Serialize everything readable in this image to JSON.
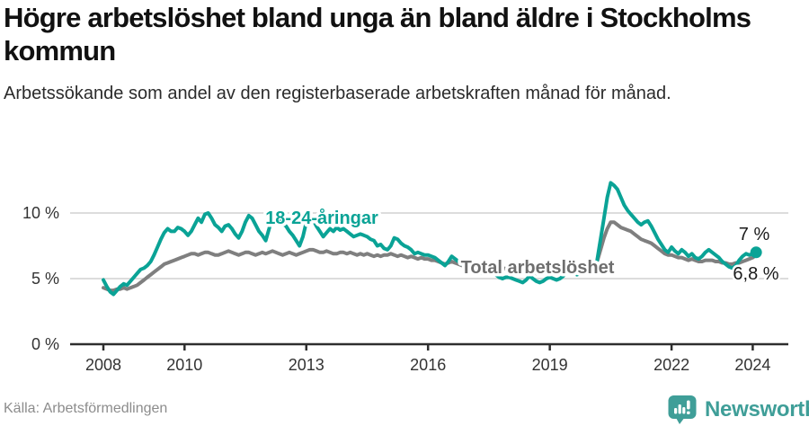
{
  "header": {
    "title": "Högre arbetslöshet bland unga än bland äldre i Stockholms kommun",
    "subtitle": "Arbetssökande som andel av den registerbaserade arbetskraften månad för månad."
  },
  "footer": {
    "source": "Källa: Arbetsförmedlingen",
    "brand": "Newsworthy"
  },
  "colors": {
    "young": "#0aa396",
    "total": "#7f7f7f",
    "total_label": "#6e6e6e",
    "grid": "#dcdcdc",
    "axis": "#2e2e2e",
    "tick_text": "#333333",
    "end_label_text": "#1a1a1a",
    "brand": "#3f9e98"
  },
  "chart_data": {
    "type": "line",
    "title": "Högre arbetslöshet bland unga än bland äldre i Stockholms kommun",
    "subtitle": "Arbetssökande som andel av den registerbaserade arbetskraften månad för månad.",
    "unit": "%",
    "x_start_year": 2008,
    "x_step_months": 1,
    "x_end": "2024-02",
    "xlim": [
      2008,
      2024.25
    ],
    "ylim": [
      0,
      12.5
    ],
    "grid": "horizontal",
    "y_ticks": [
      {
        "label": "10 %",
        "value": 10
      },
      {
        "label": "5 %",
        "value": 5
      },
      {
        "label": "0 %",
        "value": 0
      }
    ],
    "x_ticks": [
      {
        "label": "2008",
        "year": 2008
      },
      {
        "label": "2010",
        "year": 2010
      },
      {
        "label": "2013",
        "year": 2013
      },
      {
        "label": "2016",
        "year": 2016
      },
      {
        "label": "2019",
        "year": 2019
      },
      {
        "label": "2022",
        "year": 2022
      },
      {
        "label": "2024",
        "year": 2024
      }
    ],
    "end_labels": {
      "young": "7 %",
      "total": "6,8 %"
    },
    "series": [
      {
        "name": "18-24-åringar",
        "color": "#0aa396",
        "values": [
          4.9,
          4.4,
          4.0,
          3.8,
          4.1,
          4.4,
          4.6,
          4.5,
          4.8,
          5.1,
          5.4,
          5.7,
          5.8,
          6.0,
          6.3,
          6.8,
          7.4,
          8.0,
          8.5,
          8.8,
          8.6,
          8.6,
          8.9,
          8.8,
          8.6,
          8.3,
          8.6,
          9.1,
          9.6,
          9.3,
          9.9,
          10.0,
          9.6,
          9.1,
          8.9,
          8.6,
          9.0,
          9.1,
          8.8,
          8.4,
          8.1,
          8.6,
          9.3,
          9.8,
          9.6,
          9.1,
          8.6,
          8.3,
          7.9,
          8.8,
          9.8,
          9.9,
          9.6,
          9.2,
          9.0,
          8.6,
          8.3,
          7.9,
          7.5,
          8.2,
          9.3,
          9.9,
          9.5,
          9.0,
          8.6,
          8.2,
          8.5,
          8.8,
          8.6,
          8.9,
          8.7,
          8.8,
          8.6,
          8.4,
          8.2,
          8.3,
          8.4,
          8.3,
          8.2,
          8.0,
          7.9,
          7.5,
          7.6,
          7.3,
          7.2,
          7.5,
          8.1,
          8.0,
          7.7,
          7.5,
          7.4,
          7.2,
          6.9,
          7.0,
          6.9,
          6.8,
          6.8,
          6.7,
          6.6,
          6.4,
          6.2,
          6.0,
          6.3,
          6.7,
          6.5,
          6.3,
          6.1,
          6.0,
          5.9,
          5.8,
          5.6,
          5.5,
          5.4,
          5.6,
          5.8,
          5.6,
          5.3,
          5.1,
          5.0,
          5.1,
          5.1,
          5.0,
          4.9,
          4.8,
          4.7,
          4.9,
          5.2,
          5.0,
          4.8,
          4.7,
          4.8,
          5.0,
          5.1,
          5.0,
          4.9,
          5.0,
          5.2,
          5.5,
          5.7,
          5.5,
          5.3,
          5.4,
          5.5,
          5.6,
          5.7,
          5.8,
          6.4,
          8.0,
          9.6,
          11.2,
          12.3,
          12.1,
          11.8,
          11.2,
          10.6,
          10.2,
          9.9,
          9.6,
          9.3,
          9.1,
          9.3,
          9.4,
          9.0,
          8.5,
          8.0,
          7.6,
          7.2,
          7.0,
          7.4,
          7.1,
          6.9,
          7.2,
          7.0,
          6.7,
          6.9,
          6.6,
          6.5,
          6.7,
          7.0,
          7.2,
          7.0,
          6.8,
          6.6,
          6.3,
          6.1,
          5.9,
          5.8,
          6.0,
          6.4,
          6.7,
          6.9,
          6.8,
          6.9,
          7.0
        ]
      },
      {
        "name": "Total arbetslöshet",
        "color": "#7f7f7f",
        "values": [
          4.3,
          4.2,
          4.1,
          4.1,
          4.2,
          4.2,
          4.3,
          4.2,
          4.3,
          4.4,
          4.5,
          4.7,
          4.9,
          5.1,
          5.3,
          5.5,
          5.7,
          5.9,
          6.1,
          6.2,
          6.3,
          6.4,
          6.5,
          6.6,
          6.7,
          6.8,
          6.9,
          6.9,
          6.8,
          6.9,
          7.0,
          7.0,
          6.9,
          6.8,
          6.8,
          6.9,
          7.0,
          7.1,
          7.0,
          6.9,
          6.8,
          6.9,
          7.0,
          7.0,
          6.9,
          6.8,
          6.9,
          7.0,
          6.9,
          7.0,
          7.1,
          7.0,
          6.9,
          6.8,
          6.9,
          7.0,
          6.9,
          6.8,
          6.9,
          7.0,
          7.1,
          7.2,
          7.2,
          7.1,
          7.0,
          7.0,
          7.1,
          7.0,
          6.9,
          6.9,
          7.0,
          7.0,
          6.9,
          7.0,
          6.9,
          6.8,
          6.9,
          6.8,
          6.9,
          6.8,
          6.7,
          6.8,
          6.7,
          6.8,
          6.8,
          6.9,
          6.8,
          6.7,
          6.8,
          6.7,
          6.6,
          6.7,
          6.6,
          6.5,
          6.6,
          6.5,
          6.5,
          6.4,
          6.4,
          6.3,
          6.2,
          6.1,
          6.2,
          6.3,
          6.2,
          6.1,
          6.0,
          6.1,
          6.1,
          6.0,
          6.0,
          5.9,
          5.8,
          5.9,
          6.0,
          5.9,
          5.8,
          5.7,
          5.7,
          5.8,
          5.7,
          5.6,
          5.6,
          5.5,
          5.4,
          5.5,
          5.6,
          5.5,
          5.4,
          5.4,
          5.5,
          5.5,
          5.6,
          5.5,
          5.4,
          5.5,
          5.6,
          5.7,
          5.8,
          5.7,
          5.6,
          5.7,
          5.8,
          5.9,
          5.9,
          5.9,
          6.3,
          7.2,
          8.1,
          8.8,
          9.3,
          9.3,
          9.1,
          8.9,
          8.8,
          8.7,
          8.6,
          8.4,
          8.2,
          8.0,
          7.9,
          7.8,
          7.7,
          7.5,
          7.3,
          7.1,
          6.9,
          6.8,
          6.8,
          6.7,
          6.6,
          6.6,
          6.5,
          6.4,
          6.5,
          6.4,
          6.3,
          6.3,
          6.4,
          6.4,
          6.4,
          6.3,
          6.3,
          6.2,
          6.2,
          6.1,
          6.1,
          6.2,
          6.2,
          6.3,
          6.4,
          6.5,
          6.6,
          6.8
        ]
      }
    ]
  }
}
